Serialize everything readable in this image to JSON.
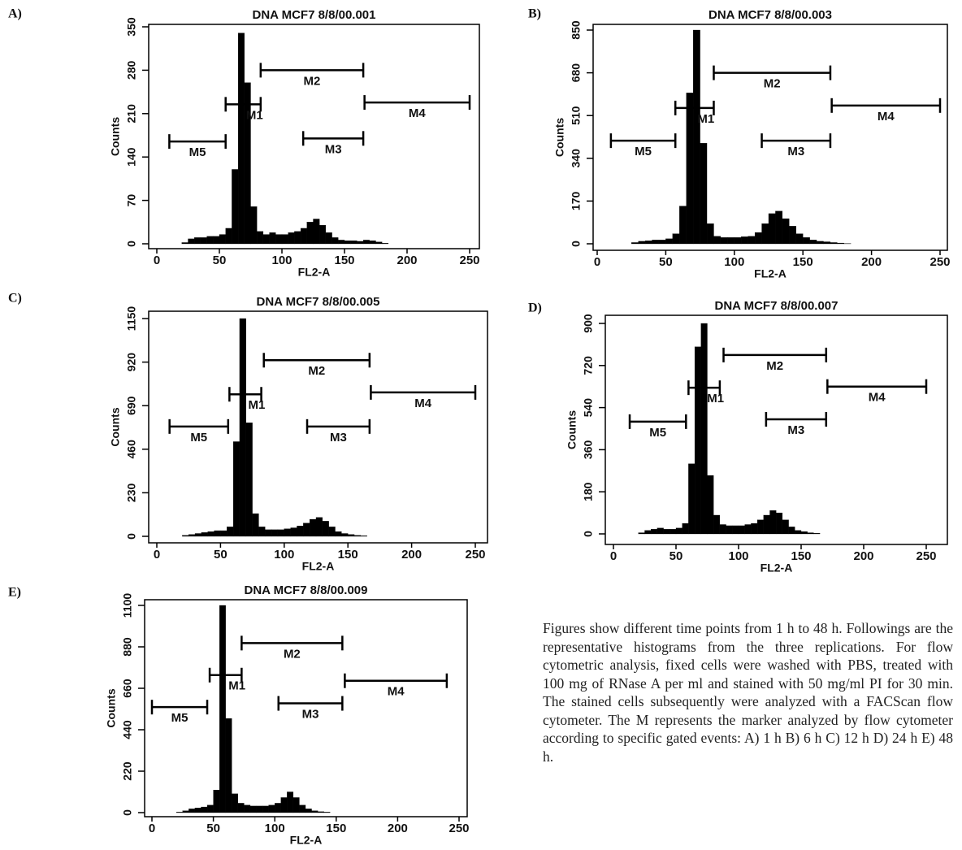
{
  "chart_data": [
    {
      "type": "histogram",
      "label": "A)",
      "title": "DNA MCF7 8/8/00.001",
      "xlabel": "FL2-A",
      "ylabel": "Counts",
      "color": "#000000",
      "bins": [
        0,
        5,
        10,
        15,
        20,
        25,
        30,
        35,
        40,
        45,
        50,
        55,
        60,
        65,
        70,
        75,
        80,
        85,
        90,
        95,
        100,
        105,
        110,
        115,
        120,
        125,
        130,
        135,
        140,
        145,
        150,
        155,
        160,
        165,
        170,
        175,
        180,
        185,
        190,
        195,
        200,
        205,
        210,
        215,
        220,
        225,
        230,
        235,
        240,
        245,
        250
      ],
      "counts": [
        0,
        0,
        0,
        0,
        2,
        8,
        10,
        10,
        12,
        12,
        15,
        25,
        120,
        340,
        260,
        60,
        20,
        15,
        18,
        15,
        15,
        18,
        20,
        25,
        35,
        40,
        30,
        18,
        10,
        6,
        5,
        5,
        4,
        6,
        5,
        3,
        1,
        0,
        0,
        0,
        0,
        0,
        0,
        0,
        0,
        0,
        0,
        0,
        0,
        0
      ],
      "xlim": [
        0,
        250
      ],
      "xticks": [
        0,
        50,
        100,
        150,
        200,
        250
      ],
      "ylim": [
        0,
        350
      ],
      "yticks": [
        0,
        70,
        140,
        210,
        280,
        350
      ],
      "markers": [
        {
          "label": "M1",
          "range": [
            55,
            83
          ],
          "y": 225
        },
        {
          "label": "M2",
          "range": [
            83,
            165
          ],
          "y": 280
        },
        {
          "label": "M3",
          "range": [
            117,
            165
          ],
          "y": 170
        },
        {
          "label": "M4",
          "range": [
            166,
            250
          ],
          "y": 228
        },
        {
          "label": "M5",
          "range": [
            10,
            55
          ],
          "y": 165
        }
      ]
    },
    {
      "type": "histogram",
      "label": "B)",
      "title": "DNA MCF7 8/8/00.003",
      "xlabel": "FL2-A",
      "ylabel": "Counts",
      "color": "#000000",
      "bins": [
        0,
        5,
        10,
        15,
        20,
        25,
        30,
        35,
        40,
        45,
        50,
        55,
        60,
        65,
        70,
        75,
        80,
        85,
        90,
        95,
        100,
        105,
        110,
        115,
        120,
        125,
        130,
        135,
        140,
        145,
        150,
        155,
        160,
        165,
        170,
        175,
        180,
        185,
        190,
        195,
        200,
        205,
        210,
        215,
        220,
        225,
        230,
        235,
        240,
        245,
        250
      ],
      "counts": [
        0,
        0,
        0,
        0,
        0,
        5,
        10,
        12,
        15,
        15,
        20,
        40,
        150,
        600,
        850,
        400,
        80,
        30,
        25,
        25,
        25,
        28,
        30,
        45,
        80,
        120,
        130,
        100,
        70,
        40,
        25,
        15,
        10,
        8,
        5,
        3,
        1,
        0,
        0,
        0,
        0,
        0,
        0,
        0,
        0,
        0,
        0,
        0,
        0,
        0
      ],
      "xlim": [
        0,
        250
      ],
      "xticks": [
        0,
        50,
        100,
        150,
        200,
        250
      ],
      "ylim": [
        0,
        850
      ],
      "yticks": [
        0,
        170,
        340,
        510,
        680,
        850
      ],
      "markers": [
        {
          "label": "M1",
          "range": [
            57,
            85
          ],
          "y": 540
        },
        {
          "label": "M2",
          "range": [
            85,
            170
          ],
          "y": 680
        },
        {
          "label": "M3",
          "range": [
            120,
            170
          ],
          "y": 410
        },
        {
          "label": "M4",
          "range": [
            171,
            250
          ],
          "y": 550
        },
        {
          "label": "M5",
          "range": [
            10,
            57
          ],
          "y": 410
        }
      ]
    },
    {
      "type": "histogram",
      "label": "C)",
      "title": "DNA MCF7 8/8/00.005",
      "xlabel": "FL2-A",
      "ylabel": "Counts",
      "color": "#000000",
      "bins": [
        0,
        5,
        10,
        15,
        20,
        25,
        30,
        35,
        40,
        45,
        50,
        55,
        60,
        65,
        70,
        75,
        80,
        85,
        90,
        95,
        100,
        105,
        110,
        115,
        120,
        125,
        130,
        135,
        140,
        145,
        150,
        155,
        160,
        165,
        170,
        175,
        180,
        185,
        190,
        195,
        200,
        205,
        210,
        215,
        220,
        225,
        230,
        235,
        240,
        245,
        250
      ],
      "counts": [
        0,
        0,
        0,
        0,
        5,
        10,
        15,
        20,
        25,
        30,
        30,
        50,
        500,
        1150,
        600,
        120,
        50,
        35,
        35,
        35,
        40,
        45,
        55,
        70,
        90,
        100,
        80,
        50,
        25,
        15,
        10,
        5,
        3,
        0,
        0,
        0,
        0,
        0,
        0,
        0,
        0,
        0,
        0,
        0,
        0,
        0,
        0,
        0,
        0,
        0
      ],
      "xlim": [
        0,
        250
      ],
      "xticks": [
        0,
        50,
        100,
        150,
        200,
        250
      ],
      "ylim": [
        0,
        1150
      ],
      "yticks": [
        0,
        230,
        460,
        690,
        920,
        1150
      ],
      "markers": [
        {
          "label": "M1",
          "range": [
            57,
            82
          ],
          "y": 750
        },
        {
          "label": "M2",
          "range": [
            84,
            167
          ],
          "y": 930
        },
        {
          "label": "M3",
          "range": [
            118,
            167
          ],
          "y": 580
        },
        {
          "label": "M4",
          "range": [
            168,
            250
          ],
          "y": 760
        },
        {
          "label": "M5",
          "range": [
            10,
            56
          ],
          "y": 580
        }
      ]
    },
    {
      "type": "histogram",
      "label": "D)",
      "title": "DNA MCF7 8/8/00.007",
      "xlabel": "FL2-A",
      "ylabel": "Counts",
      "color": "#000000",
      "bins": [
        0,
        5,
        10,
        15,
        20,
        25,
        30,
        35,
        40,
        45,
        50,
        55,
        60,
        65,
        70,
        75,
        80,
        85,
        90,
        95,
        100,
        105,
        110,
        115,
        120,
        125,
        130,
        135,
        140,
        145,
        150,
        155,
        160,
        165,
        170,
        175,
        180,
        185,
        190,
        195,
        200,
        205,
        210,
        215,
        220,
        225,
        230,
        235,
        240,
        245,
        250
      ],
      "counts": [
        0,
        0,
        0,
        0,
        5,
        15,
        20,
        25,
        20,
        20,
        25,
        45,
        300,
        800,
        900,
        250,
        80,
        40,
        35,
        35,
        35,
        40,
        45,
        60,
        80,
        100,
        90,
        60,
        30,
        15,
        10,
        5,
        3,
        0,
        0,
        0,
        0,
        0,
        0,
        0,
        0,
        0,
        0,
        0,
        0,
        0,
        0,
        0,
        0,
        0
      ],
      "xlim": [
        0,
        250
      ],
      "xticks": [
        0,
        50,
        100,
        150,
        200,
        250
      ],
      "ylim": [
        0,
        900
      ],
      "yticks": [
        0,
        180,
        360,
        540,
        720,
        900
      ],
      "markers": [
        {
          "label": "M1",
          "range": [
            60,
            85
          ],
          "y": 625
        },
        {
          "label": "M2",
          "range": [
            88,
            170
          ],
          "y": 765
        },
        {
          "label": "M3",
          "range": [
            122,
            170
          ],
          "y": 490
        },
        {
          "label": "M4",
          "range": [
            171,
            250
          ],
          "y": 630
        },
        {
          "label": "M5",
          "range": [
            13,
            58
          ],
          "y": 480
        }
      ]
    },
    {
      "type": "histogram",
      "label": "E)",
      "title": "DNA MCF7 8/8/00.009",
      "xlabel": "FL2-A",
      "ylabel": "Counts",
      "color": "#000000",
      "bins": [
        0,
        5,
        10,
        15,
        20,
        25,
        30,
        35,
        40,
        45,
        50,
        55,
        60,
        65,
        70,
        75,
        80,
        85,
        90,
        95,
        100,
        105,
        110,
        115,
        120,
        125,
        130,
        135,
        140,
        145,
        150,
        155,
        160,
        165,
        170,
        175,
        180,
        185,
        190,
        195,
        200,
        205,
        210,
        215,
        220,
        225,
        230,
        235,
        240,
        245,
        250
      ],
      "counts": [
        0,
        0,
        0,
        0,
        3,
        10,
        20,
        25,
        30,
        40,
        120,
        1100,
        500,
        100,
        50,
        40,
        35,
        35,
        35,
        40,
        50,
        80,
        110,
        80,
        40,
        20,
        10,
        5,
        3,
        0,
        0,
        0,
        0,
        0,
        0,
        0,
        0,
        0,
        0,
        0,
        0,
        0,
        0,
        0,
        0,
        0,
        0,
        0,
        0,
        0
      ],
      "xlim": [
        0,
        250
      ],
      "xticks": [
        0,
        50,
        100,
        150,
        200,
        250
      ],
      "ylim": [
        0,
        1100
      ],
      "yticks": [
        0,
        220,
        440,
        660,
        880,
        1100
      ],
      "markers": [
        {
          "label": "M1",
          "range": [
            47,
            73
          ],
          "y": 730
        },
        {
          "label": "M2",
          "range": [
            73,
            155
          ],
          "y": 900
        },
        {
          "label": "M3",
          "range": [
            103,
            155
          ],
          "y": 580
        },
        {
          "label": "M4",
          "range": [
            157,
            240
          ],
          "y": 700
        },
        {
          "label": "M5",
          "range": [
            0,
            45
          ],
          "y": 560
        }
      ]
    }
  ],
  "caption": "Figures show different time points from 1 h to 48 h. Followings are the representative histograms from the three replications. For flow cytometric analysis, fixed cells were washed with PBS, treated with 100 mg of RNase A per ml and stained with 50 mg/ml PI for 30 min. The stained cells subsequently were analyzed with a FACScan flow cytometer. The M represents the marker analyzed by flow cytometer according to specific gated events:  A) 1 h  B) 6 h  C) 12 h  D) 24 h  E) 48 h."
}
